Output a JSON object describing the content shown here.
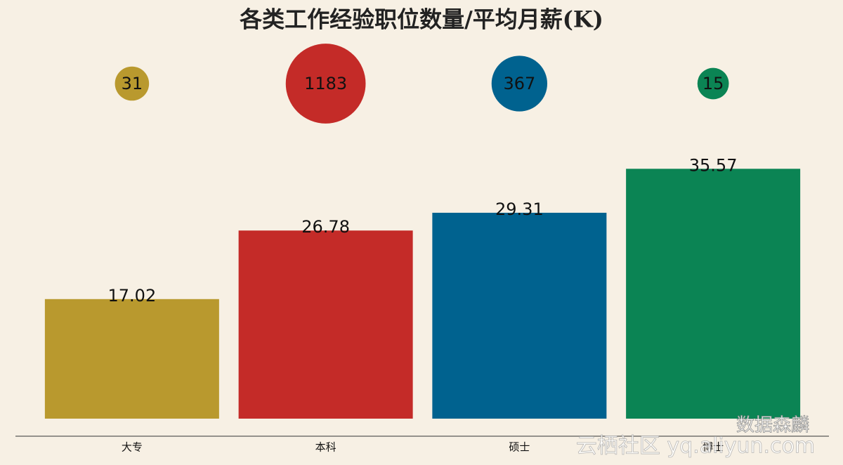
{
  "chart_data": {
    "type": "bar",
    "title": "各类工作经验职位数量/平均月薪(K)",
    "categories": [
      "大专",
      "本科",
      "硕士",
      "博士"
    ],
    "values": [
      17.02,
      26.78,
      29.31,
      35.57
    ],
    "bubble_values": [
      31,
      1183,
      367,
      15
    ],
    "colors": [
      "#b9992e",
      "#c42b28",
      "#00628f",
      "#0b8454"
    ],
    "ylim": [
      0,
      40
    ],
    "annotations": [
      "数据森麟",
      "云栖社区 yq.aliyun.com"
    ]
  }
}
